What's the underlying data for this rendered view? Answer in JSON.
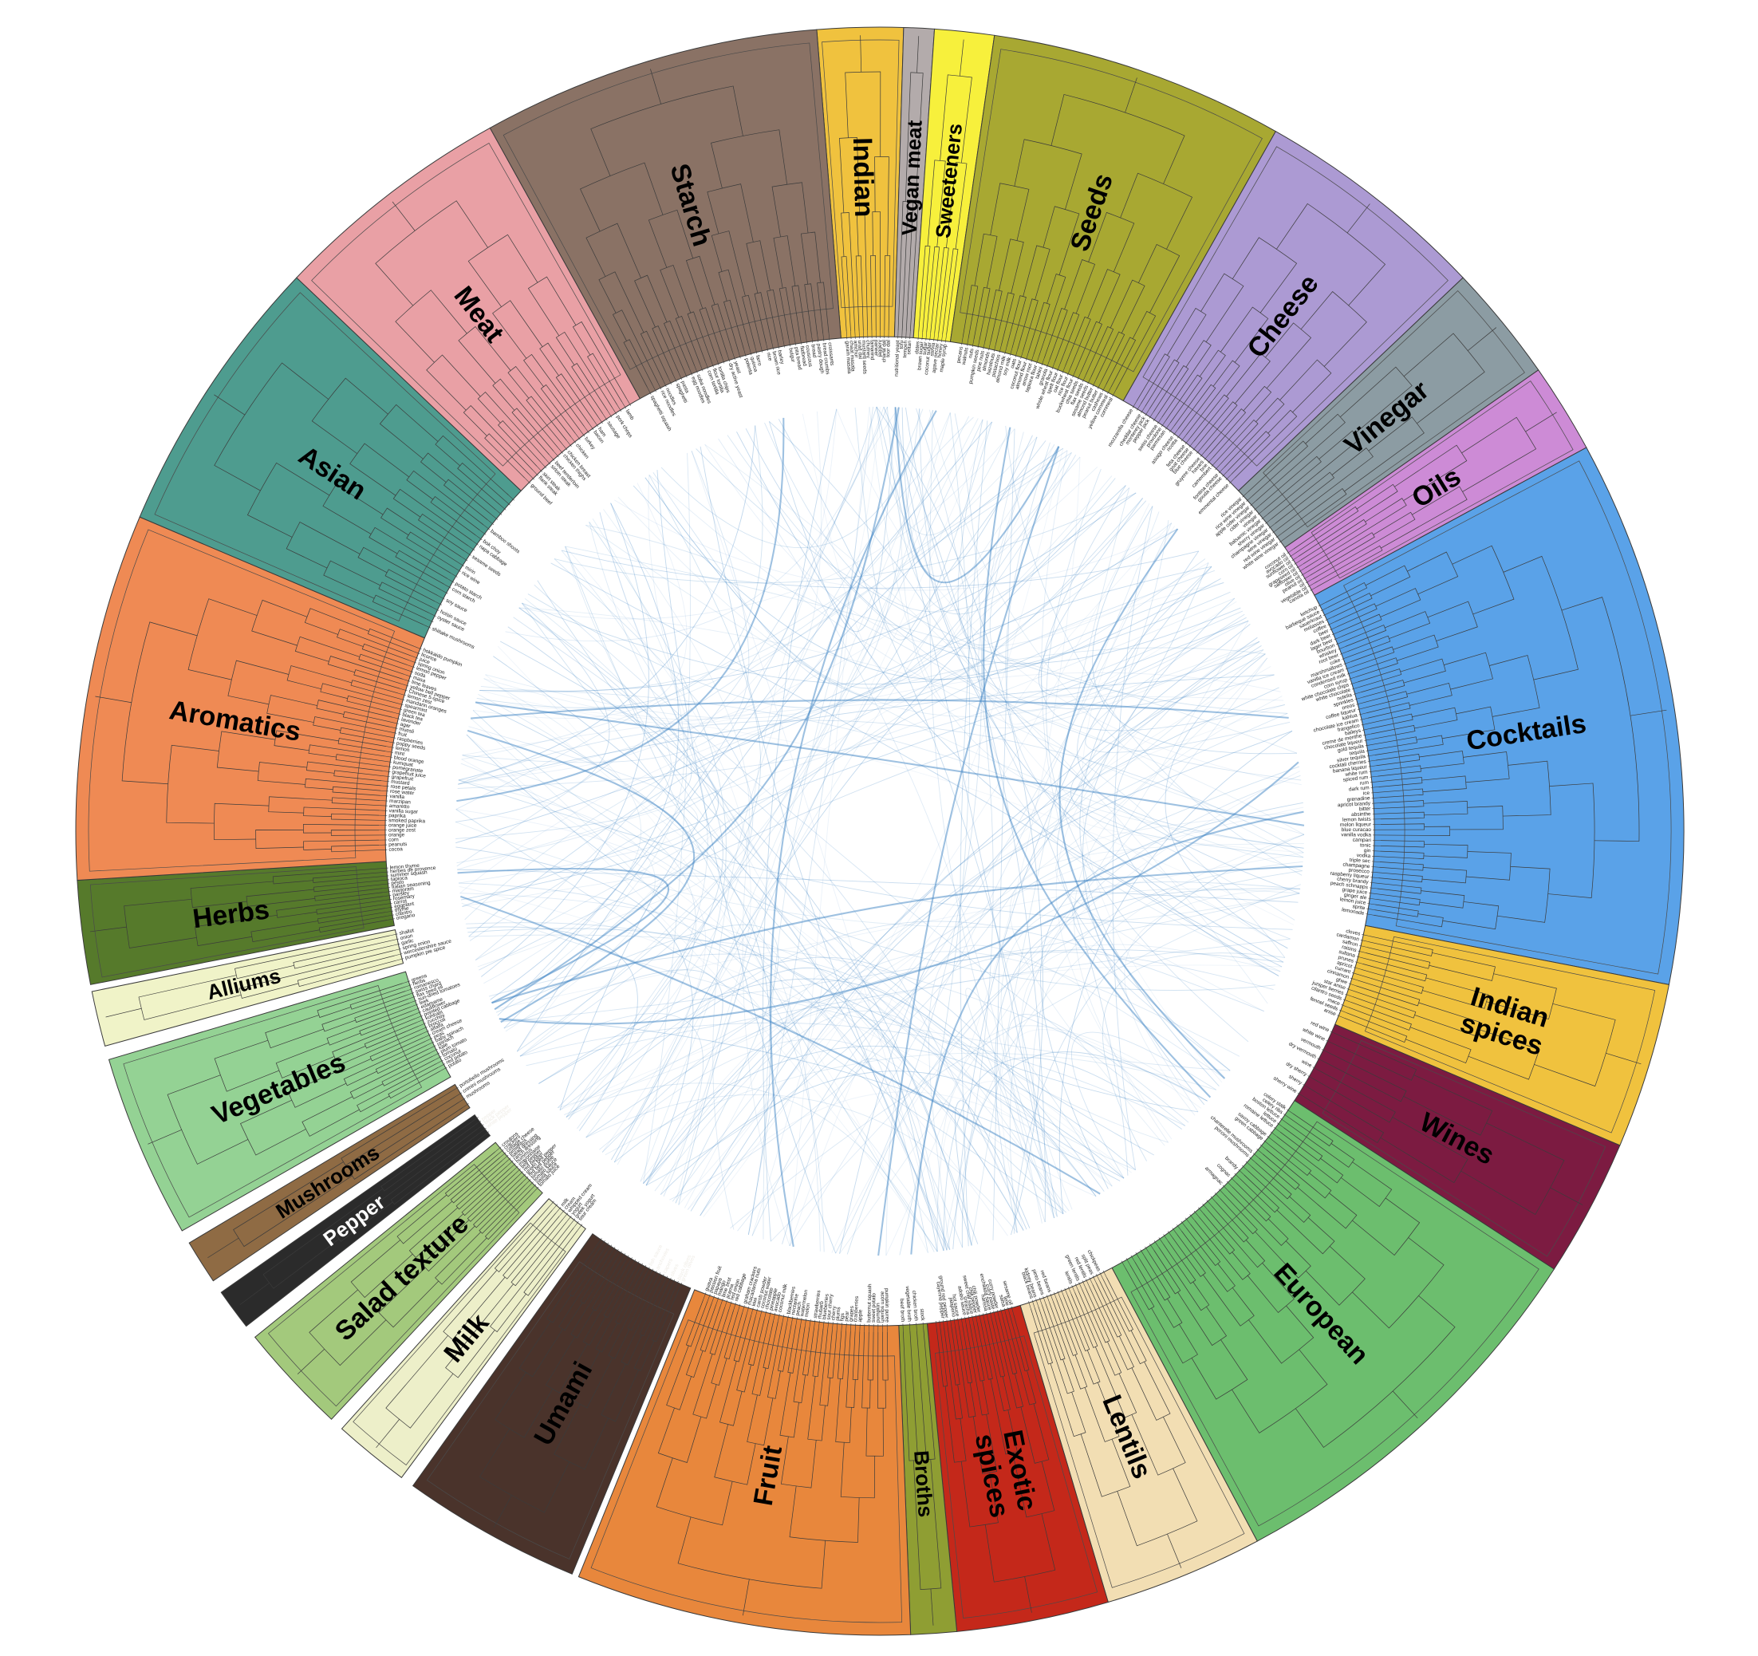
{
  "chart_data": {
    "type": "hierarchical_edge_bundling",
    "background": "#ffffff",
    "center": [
      1103,
      1042
    ],
    "radii": {
      "outer": 1008,
      "ring_inner": 620,
      "leaf_label": 616,
      "tree_leaf": 628,
      "tree_root": 952,
      "edge_anchor": 532,
      "category_label": 820
    },
    "leaf_font_size": 6.5,
    "leaf_text_color": "#1b1b1b",
    "tree_color": "#3b3b3b",
    "edge_style": {
      "color": "#3e84c4",
      "count": 300,
      "seed": 1337,
      "bold_every": 19,
      "bold_opacity": 0.5
    },
    "categories": [
      {
        "name": "Indian",
        "color": "#F0C23E",
        "start": -4.5,
        "end": 1.7,
        "leaves": [
          "garam masala",
          "chaat masala",
          "amchur",
          "urad dal",
          "mustard seeds",
          "chutney",
          "tamarind",
          "paneer",
          "jaggery",
          "chana dal",
          "toor dal"
        ]
      },
      {
        "name": "Vegan meat",
        "color": "#B3ABAB",
        "start": 1.7,
        "end": 3.9,
        "leaves": [
          "nutritional yeast",
          "tofu",
          "tempeh",
          "seitan"
        ]
      },
      {
        "name": "Sweeteners",
        "color": "#F7F03C",
        "start": 3.9,
        "end": 8.2,
        "leaves": [
          "dates",
          "brown sugar",
          "sugar",
          "coconut sugar",
          "stevia",
          "agave nectar",
          "honey",
          "maple syrup"
        ]
      },
      {
        "name": "Seeds",
        "color": "#A8A832",
        "start": 8.2,
        "end": 29.5,
        "leaves": [
          "pecans",
          "walnuts",
          "nuts",
          "pumpkin seeds",
          "pine nuts",
          "almonds",
          "hazelnuts",
          "pistachios",
          "almond milk",
          "soy milk",
          "oats",
          "coconut flour",
          "almond flour",
          "arrow root",
          "tapioca flour",
          "tahini",
          "granola",
          "whole wheat flour",
          "spelt flour",
          "oat flour",
          "rice flour",
          "buckwheat flour",
          "chia seeds",
          "flax seeds",
          "sesame seeds",
          "almond butter",
          "peanut butter",
          "cashews",
          "yellow cornmeal",
          "cornmeal"
        ]
      },
      {
        "name": "Cheese",
        "color": "#AC9AD3",
        "start": 29.5,
        "end": 46.5,
        "leaves": [
          "mozzarella cheese",
          "",
          "cheddar cheese",
          "monterey jack",
          "pepper jack",
          "",
          "swiss cheese",
          "provolone",
          "parmesan",
          "",
          "asiago cheese",
          "ricotta",
          "",
          "feta cheese",
          "goat cheese",
          "blue cheese",
          "",
          "gruyere cheese",
          "havarti",
          "brie",
          "camembert",
          "",
          "fontina cheese",
          "gouda cheese",
          "",
          "emmental cheese"
        ]
      },
      {
        "name": "Vinegar",
        "color": "#8C9CA3",
        "start": 46.5,
        "end": 55,
        "leaves": [
          "rice vinegar",
          "rice wine vinegar",
          "apple cider vinegar",
          "cider vinegar",
          "vinegar",
          "balsamic vinegar",
          "sherry vinegar",
          "champagne vinegar",
          "wine vinegar",
          "red wine vinegar",
          "white wine vinegar"
        ]
      },
      {
        "name": "Oils",
        "color": "#CD8BD6",
        "start": 55,
        "end": 61.5,
        "leaves": [
          "coconut oil",
          "avocado oil",
          "sunflower oil",
          "corn oil",
          "grapeseed oil",
          "safflower oil",
          "olive oil",
          "peanut oil",
          "oil",
          "vegetable oil",
          "canola oil"
        ]
      },
      {
        "name": "Cocktails",
        "color": "#5AA2E8",
        "start": 61.5,
        "end": 101,
        "leaves": [
          "ketchup",
          "barbeque sauce",
          "sauerkraut",
          "molasses",
          "coffee",
          "beer",
          "dark beer",
          "lager beer",
          "bourbon",
          "whiskey",
          "root beer",
          "coke",
          "marshmallows",
          "vanilla ice cream",
          "condensed milk",
          "corn syrup",
          "white chocolate chips",
          "white chocolate",
          "nutella",
          "sprinkles",
          "oreos",
          "coffee liqueur",
          "kahlua",
          "chocolate ice cream",
          "frangelico",
          "baileys",
          "creme de menthe",
          "chocolate liqueur",
          "gold tequila",
          "tequila",
          "silver tequila",
          "cocktail cherries",
          "banana liqueur",
          "white rum",
          "spiced rum",
          "rum",
          "dark rum",
          "ice",
          "grenadine",
          "apricot brandy",
          "bitter",
          "absinthe",
          "lemon twists",
          "melon liqueur",
          "blue curacao",
          "vanilla vodka",
          "campari",
          "tonic",
          "gin",
          "vodka",
          "triple sec",
          "champagne",
          "prosecco",
          "raspberry liqueur",
          "cherry brandy",
          "peach schnapps",
          "grape juice",
          "ginger ale",
          "lemon juice",
          "sprite",
          "lemonade"
        ]
      },
      {
        "name": "Indian spices",
        "color": "#F0C23E",
        "start": 101,
        "end": 113,
        "lines": [
          "Indian",
          "spices"
        ],
        "leaves": [
          "cloves",
          "cardamon",
          "saffron",
          "raisins",
          "sultana",
          "prunes",
          "apricot",
          "currant",
          "cinnamon",
          "ghee",
          "star anise",
          "juniper berries",
          "cilantro seeds",
          "mace",
          "fennel seeds",
          "anise"
        ]
      },
      {
        "name": "Wines",
        "color": "#7C1B41",
        "start": 113,
        "end": 123,
        "leaves": [
          "red wine",
          "white wine",
          "vermouth",
          "dry vermouth",
          "wine",
          "dry sherry",
          "sherry",
          "sherry wine"
        ]
      },
      {
        "name": "European",
        "color": "#6CBE6E",
        "start": 123,
        "end": 152,
        "leaves": [
          "celery stalk",
          "celery ribs",
          "boston lettuce",
          "lettuce",
          "romaine lettuce",
          "",
          "savoy cabbage",
          "green cabbage",
          "",
          "",
          "chanterelle mushrooms",
          "porcini mushrooms",
          "",
          "",
          "brandy",
          "",
          "cognac",
          "",
          "armagnac",
          "",
          "",
          "",
          "",
          "",
          "",
          "",
          "",
          "",
          "",
          "",
          "",
          "",
          "",
          "",
          "",
          "",
          "",
          "",
          "",
          "",
          "",
          ""
        ]
      },
      {
        "name": "Lentils",
        "color": "#F2DEB3",
        "start": 152,
        "end": 163.5,
        "leaves": [
          "",
          "chickpeas",
          "",
          "split peas",
          "",
          "red lentils",
          "",
          "green lentils",
          "",
          "lentils",
          "",
          "",
          "",
          "",
          "",
          "red beans",
          "",
          "pinto beans",
          "",
          "kidney beans",
          "black beans",
          ""
        ]
      },
      {
        "name": "Exotic spices",
        "color": "#C4281A",
        "start": 163.5,
        "end": 174.5,
        "lines": [
          "Exotic",
          "spices"
        ],
        "leaves": [
          "sesame oil",
          "lime",
          "salsa",
          "",
          "curry powder",
          "curry paste",
          "enchilada sauce",
          "harissa",
          "",
          "chili powder",
          "chili pepper",
          "sweet chili sauce",
          "sriracha",
          "adobo sauce",
          "",
          "hot sauce",
          "jalapeno",
          "",
          "ground red pepper",
          "cayenne pepper",
          "",
          ""
        ]
      },
      {
        "name": "Broths",
        "color": "#8F9E33",
        "start": 174.5,
        "end": 177.8,
        "leaves": [
          "stock",
          "chicken broth",
          "vegetable broth",
          "beef broth"
        ]
      },
      {
        "name": "Fruit",
        "color": "#E8873C",
        "start": 177.8,
        "end": 202,
        "leaves": [
          "pumpkin puree",
          "acorn squash",
          "pumpkin",
          "sweet potato",
          "butternut squash",
          "",
          "apple",
          "cranberries",
          "grapes",
          "pear",
          "figs",
          "plums",
          "cherry",
          "sour cherry",
          "blueberries",
          "rhubarb",
          "strawberries",
          "",
          "melon",
          "watermelon",
          "peach",
          "nectarine",
          "blackberries",
          "",
          "coconut milk",
          "avocado",
          "pineapple",
          "chocolate",
          "coconut water",
          "carob powder",
          "kiwi",
          "macadamia nuts",
          "graham crackers",
          "",
          "red cabbage",
          "red onion",
          "jicama",
          "lime zest",
          "mango",
          "papaya",
          "passion fruit",
          "guava"
        ]
      },
      {
        "name": "Umami",
        "color": "#4A332B",
        "start": 202.5,
        "end": 215.5,
        "leaf_color": "#efece6",
        "leaves": [
          "green olives",
          "black olives",
          "",
          "olives",
          "",
          "capers",
          "",
          "anchovies",
          "",
          "fish sauce",
          "",
          "",
          "",
          "",
          "",
          "",
          "",
          "",
          "",
          "",
          "",
          "",
          "",
          ""
        ]
      },
      {
        "name": "Milk",
        "color": "#EDEFC9",
        "start": 216.5,
        "end": 222,
        "leaves": [
          "",
          "sour cream",
          "greek yogurt",
          "yogurt",
          "whipped cream",
          "cream",
          "milk",
          "",
          ""
        ]
      },
      {
        "name": "Salad texture",
        "color": "#A3C97C",
        "start": 223,
        "end": 231,
        "leaves": [
          "tomato juice",
          "pasta sauce",
          "tomato sauce",
          "tomato puree",
          "red bell pepper",
          "green bell pepper",
          "red pepper",
          "bell pepper",
          "mayonnaise",
          "hummus",
          "ranch dressing",
          "salad dressing",
          "pimientos",
          "cottage cheese",
          "crackers",
          "croutons"
        ]
      },
      {
        "name": "Pepper",
        "color": "#2B2B2B",
        "start": 232,
        "end": 235,
        "label_color": "#ffffff",
        "leaf_color": "#efece6",
        "leaves": [
          "",
          "white pepper",
          "black pepper",
          "pepper",
          ""
        ]
      },
      {
        "name": "Mushrooms",
        "color": "#8F6B44",
        "start": 236,
        "end": 239.2,
        "leaves": [
          "",
          "mushrooms",
          "crimini mushrooms",
          "portobello mushrooms"
        ]
      },
      {
        "name": "Vegetables",
        "color": "#94D294",
        "start": 240.2,
        "end": 253.5,
        "leaves": [
          "potato",
          "red potato",
          "coconut",
          "tomato",
          "plum tomato",
          "kale",
          "spinach",
          "baby spinach",
          "peas",
          "cream cheese",
          "alfalfa",
          "broccoli",
          "zucchini",
          "kohlrabi",
          "pointed cabbage",
          "cauliflower",
          "edamame",
          "leek",
          "sun-dried tomatoes",
          "flax seed oil",
          "swiss chard",
          "romanesco",
          "herbs",
          "greens"
        ]
      },
      {
        "name": "Alliums",
        "color": "#F0F3C8",
        "start": 254.5,
        "end": 258.5,
        "leaves": [
          "pumpkin pie spice",
          "worcestershire sauce",
          "spring onion",
          "garlic",
          "onion",
          "shallot"
        ]
      },
      {
        "name": "Herbs",
        "color": "#567A2B",
        "start": 259,
        "end": 266.5,
        "leaves": [
          "oregano",
          "cilantro",
          "thyme",
          "eggplant",
          "carrot",
          "rosemary",
          "parsley",
          "marjoram",
          "Italian seasoning",
          "pesto",
          "tapioca",
          "summer squash",
          "herbes de provence",
          "lemon thyme"
        ]
      },
      {
        "name": "Aromatics",
        "color": "#EF8A54",
        "start": 266.5,
        "end": 293,
        "leaves": [
          "cocoa",
          "peanuts",
          "corn",
          "orange",
          "orange zest",
          "orange juice",
          "smoked paprika",
          "paprika",
          "vanilla sugar",
          "amaretto",
          "marzipan",
          "vanilla",
          "rose water",
          "rose petals",
          "mustard",
          "grapefruit",
          "grapefruit juice",
          "pomegranate",
          "kumquat",
          "blood orange",
          "mint",
          "lemon",
          "poppy seeds",
          "raspberries",
          "fruit",
          "muesli",
          "agar",
          "lavender",
          "black tea",
          "green tea",
          "spearmint",
          "mandarin oranges",
          "lemon zest",
          "Chinese 5-spice",
          "yellow bell pepper",
          "lime leaves",
          "masa",
          "soda",
          "lemon pepper",
          "spring onion",
          "juice",
          "licorice",
          "hokkaido pumpkin"
        ]
      },
      {
        "name": "Asian",
        "color": "#4E9C8F",
        "start": 293,
        "end": 313.5,
        "leaves": [
          "shiitake mushrooms",
          "",
          "oyster sauce",
          "hoisin sauce",
          "",
          "soy sauce",
          "",
          "corn starch",
          "potato starch",
          "",
          "rice wine",
          "mirin",
          "",
          "sesame seeds",
          "",
          "napa cabbage",
          "bok choy",
          "",
          "bamboo shoots",
          "",
          "",
          "",
          "",
          "",
          ""
        ]
      },
      {
        "name": "Meat",
        "color": "#E9A0A5",
        "start": 313.5,
        "end": 331,
        "leaves": [
          "ground beef",
          "",
          "flank steak",
          "skirt steak",
          "",
          "sirloin steak",
          "beef tenderloin",
          "",
          "chicken thighs",
          "chicken breast",
          "",
          "chicken",
          "",
          "turkey",
          "",
          "bacon",
          "ham",
          "",
          "sausage",
          "",
          "pork chops",
          "",
          "lamb",
          ""
        ]
      },
      {
        "name": "Starch",
        "color": "#8A7265",
        "start": 331,
        "end": 355.5,
        "leaves": [
          "spaghetti squash",
          "",
          "rice noodles",
          "noodles",
          "",
          "spaghetti",
          "pasta",
          "",
          "egg noodles",
          "soba noodles",
          "",
          "corn tortilla",
          "flour tortilla",
          "tortilla chips",
          "",
          "dry active yeast",
          "yeast",
          "",
          "polenta",
          "quinoa",
          "farro",
          "",
          "rice",
          "brown rice",
          "barley",
          "",
          "bulgur",
          "pita bread",
          "flatbread",
          "couscous",
          "bread",
          "pastry dough",
          "bread crumbs",
          "croissants"
        ]
      }
    ]
  }
}
